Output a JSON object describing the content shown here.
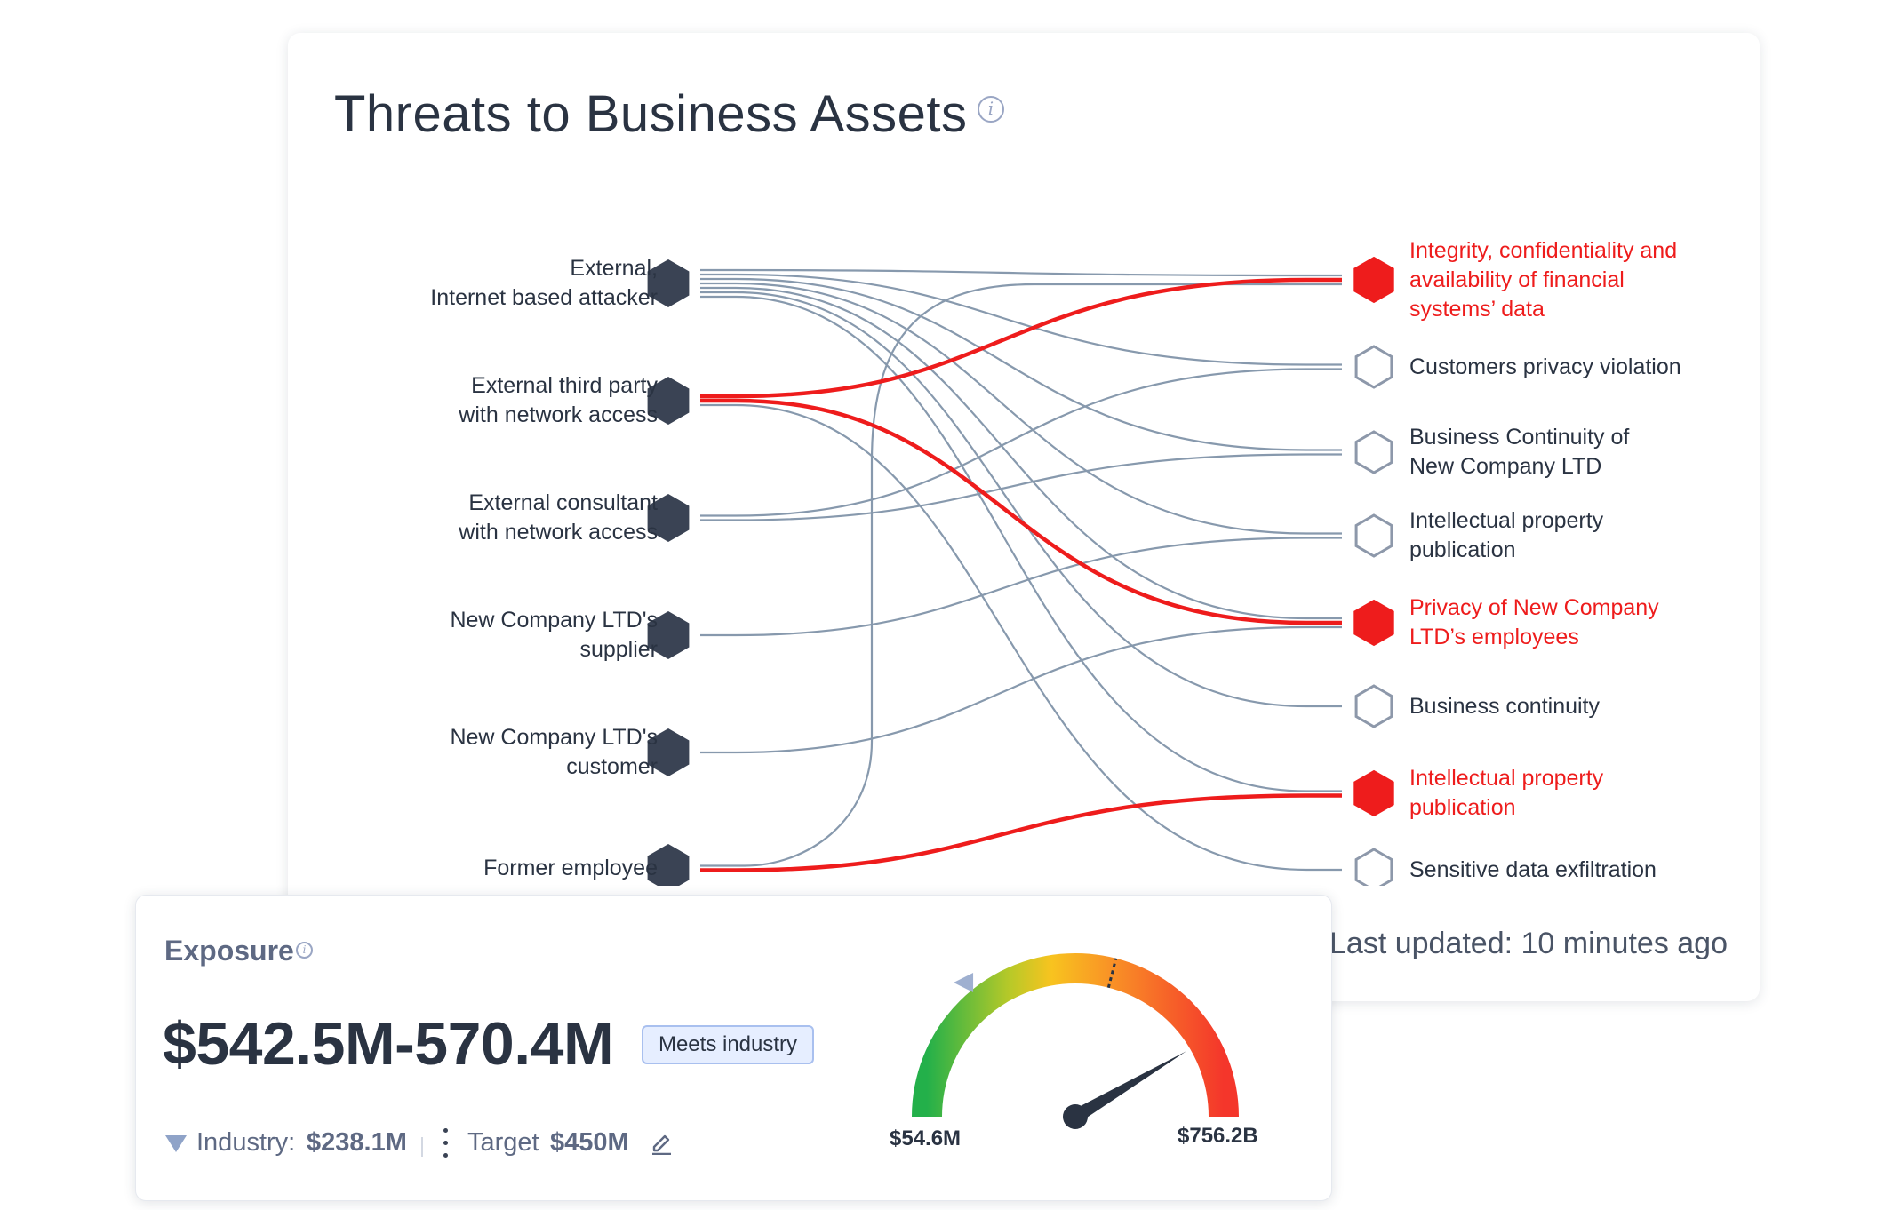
{
  "card": {
    "title": "Threats to Business Assets",
    "info_icon": "info-circle-icon",
    "last_updated": "Last updated:  10 minutes ago"
  },
  "sources": [
    {
      "label": "External,\nInternet based attacker"
    },
    {
      "label": "External third party\nwith network access"
    },
    {
      "label": "External consultant\nwith network access"
    },
    {
      "label": "New Company LTD's\nsupplier"
    },
    {
      "label": "New Company LTD's\ncustomer"
    },
    {
      "label": "Former employee"
    }
  ],
  "targets": [
    {
      "label": "Integrity, confidentiality and\navailability of financial\nsystems’ data",
      "highlighted": true
    },
    {
      "label": "Customers privacy violation",
      "highlighted": false
    },
    {
      "label": "Business Continuity of\nNew Company LTD",
      "highlighted": false
    },
    {
      "label": "Intellectual property\npublication",
      "highlighted": false
    },
    {
      "label": "Privacy of New Company\nLTD’s employees",
      "highlighted": true
    },
    {
      "label": "Business continuity",
      "highlighted": false
    },
    {
      "label": "Intellectual property\npublication",
      "highlighted": true
    },
    {
      "label": "Sensitive data exfiltration",
      "highlighted": false
    }
  ],
  "links": [
    {
      "source": 0,
      "target": 0,
      "critical": false
    },
    {
      "source": 0,
      "target": 1,
      "critical": false
    },
    {
      "source": 0,
      "target": 2,
      "critical": false
    },
    {
      "source": 0,
      "target": 3,
      "critical": false
    },
    {
      "source": 0,
      "target": 4,
      "critical": false
    },
    {
      "source": 0,
      "target": 5,
      "critical": false
    },
    {
      "source": 0,
      "target": 6,
      "critical": false
    },
    {
      "source": 1,
      "target": 0,
      "critical": true
    },
    {
      "source": 1,
      "target": 4,
      "critical": true
    },
    {
      "source": 1,
      "target": 7,
      "critical": false
    },
    {
      "source": 2,
      "target": 1,
      "critical": false
    },
    {
      "source": 2,
      "target": 2,
      "critical": false
    },
    {
      "source": 3,
      "target": 3,
      "critical": false
    },
    {
      "source": 4,
      "target": 4,
      "critical": false
    },
    {
      "source": 5,
      "target": 0,
      "critical": false
    },
    {
      "source": 5,
      "target": 6,
      "critical": true
    }
  ],
  "colors": {
    "link": "#8799ad",
    "critical": "#ee1c1c",
    "source_node": "#3a4354",
    "target_node_outline": "#8d98aa"
  },
  "exposure": {
    "title": "Exposure",
    "value": "$542.5M-570.4M",
    "badge": "Meets industry",
    "industry_label": "Industry:",
    "industry_value": "$238.1M",
    "target_label": "Target",
    "target_value": "$450M",
    "gauge_min": "$54.6M",
    "gauge_max": "$756.2B",
    "gauge_value_fraction": 0.83,
    "gauge_target_fraction": 0.58,
    "gauge_industry_fraction": 0.28
  }
}
